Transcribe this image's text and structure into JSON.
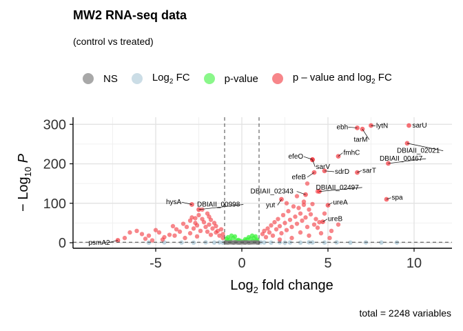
{
  "chart_data": {
    "type": "scatter",
    "title": "MW2 RNA-seq data",
    "subtitle": "(control vs treated)",
    "xlabel_main": "Log",
    "xlabel_sub": "2",
    "xlabel_rest": " fold change",
    "ylabel_prefix": "− Log",
    "ylabel_sub": "10",
    "ylabel_var": "P",
    "caption": "total = 2248 variables",
    "xlim": [
      -9.8,
      12.2
    ],
    "ylim": [
      -14,
      318
    ],
    "x_ticks": [
      -5,
      0,
      5,
      10
    ],
    "y_ticks": [
      0,
      100,
      200,
      300
    ],
    "grid": true,
    "legend_position": "top",
    "fc_cutoff": 1,
    "p_cutoff_y": 1.3,
    "colors": {
      "NS": "#7a7a7a",
      "FC": "#a9c7d6",
      "P": "#3cf23c",
      "FC_P": "#f2353c"
    },
    "legend": [
      {
        "key": "NS",
        "label": "NS",
        "sub": "",
        "rest": ""
      },
      {
        "key": "FC",
        "label": "Log",
        "sub": "2",
        "rest": " FC"
      },
      {
        "key": "P",
        "label": "p-value",
        "sub": "",
        "rest": ""
      },
      {
        "key": "FC_P",
        "label": "p – value and log",
        "sub": "2",
        "rest": " FC"
      }
    ],
    "labeled_points": [
      {
        "gene": "psmA2",
        "x": -7.2,
        "y": 6
      },
      {
        "gene": "hysA",
        "x": -2.9,
        "y": 97
      },
      {
        "gene": "DBIAII_00998",
        "x": -2.5,
        "y": 84
      },
      {
        "gene": "DBIAII_02343",
        "x": 3.7,
        "y": 122
      },
      {
        "gene": "yut",
        "x": 2.3,
        "y": 110
      },
      {
        "gene": "efeO",
        "x": 4.1,
        "y": 211
      },
      {
        "gene": "sarV",
        "x": 4.1,
        "y": 210
      },
      {
        "gene": "efeB",
        "x": 4.2,
        "y": 178
      },
      {
        "gene": "sdrD",
        "x": 4.8,
        "y": 182
      },
      {
        "gene": "fmhC",
        "x": 5.6,
        "y": 219
      },
      {
        "gene": "DBIAII_02497",
        "x": 4.5,
        "y": 130
      },
      {
        "gene": "ureA",
        "x": 5.0,
        "y": 95
      },
      {
        "gene": "ureB",
        "x": 4.7,
        "y": 53
      },
      {
        "gene": "ebh",
        "x": 6.7,
        "y": 291
      },
      {
        "gene": "tarM",
        "x": 7.0,
        "y": 288
      },
      {
        "gene": "lytN",
        "x": 7.5,
        "y": 297
      },
      {
        "gene": "sarU",
        "x": 9.7,
        "y": 297
      },
      {
        "gene": "DBIAII_02021",
        "x": 9.6,
        "y": 252
      },
      {
        "gene": "DBIAII_00467",
        "x": 8.5,
        "y": 201
      },
      {
        "gene": "sarT",
        "x": 6.7,
        "y": 178
      },
      {
        "gene": "spa",
        "x": 8.4,
        "y": 110
      }
    ],
    "label_text_positions": {
      "psmA2": [
        -8.9,
        0,
        "start"
      ],
      "hysA": [
        -4.4,
        103,
        "start"
      ],
      "DBIAII_00998": [
        -2.6,
        97,
        "start"
      ],
      "DBIAII_02343": [
        0.5,
        130,
        "start"
      ],
      "yut": [
        1.4,
        95,
        "start"
      ],
      "efeO": [
        2.7,
        218,
        "start"
      ],
      "sarV": [
        4.3,
        192,
        "start"
      ],
      "efeB": [
        2.9,
        166,
        "start"
      ],
      "sdrD": [
        5.4,
        180,
        "start"
      ],
      "fmhC": [
        5.9,
        228,
        "start"
      ],
      "DBIAII_02497": [
        4.3,
        140,
        "start"
      ],
      "ureA": [
        5.3,
        102,
        "start"
      ],
      "ureB": [
        5.0,
        60,
        "start"
      ],
      "ebh": [
        5.5,
        293,
        "start"
      ],
      "tarM": [
        6.5,
        261,
        "start"
      ],
      "lytN": [
        7.8,
        296,
        "start"
      ],
      "sarU": [
        9.9,
        297,
        "start"
      ],
      "DBIAII_02021": [
        9.0,
        233,
        "start"
      ],
      "DBIAII_00467": [
        8.0,
        213,
        "start"
      ],
      "sarT": [
        7.0,
        183,
        "start"
      ],
      "spa": [
        8.7,
        114,
        "start"
      ]
    },
    "scatter_fc_p": [
      [
        -6.5,
        26
      ],
      [
        -6.1,
        30
      ],
      [
        -5.8,
        22
      ],
      [
        -5.4,
        18
      ],
      [
        -5.0,
        32
      ],
      [
        -4.8,
        26
      ],
      [
        -4.5,
        14
      ],
      [
        -4.2,
        20
      ],
      [
        -4.0,
        42
      ],
      [
        -3.8,
        34
      ],
      [
        -3.6,
        28
      ],
      [
        -3.4,
        48
      ],
      [
        -3.2,
        40
      ],
      [
        -3.0,
        56
      ],
      [
        -3.0,
        24
      ],
      [
        -2.9,
        64
      ],
      [
        -2.8,
        36
      ],
      [
        -2.7,
        50
      ],
      [
        -2.6,
        44
      ],
      [
        -2.5,
        70
      ],
      [
        -2.4,
        30
      ],
      [
        -2.3,
        60
      ],
      [
        -2.2,
        52
      ],
      [
        -2.1,
        40
      ],
      [
        -2.0,
        74
      ],
      [
        -2.0,
        28
      ],
      [
        -1.9,
        46
      ],
      [
        -1.8,
        58
      ],
      [
        -1.8,
        20
      ],
      [
        -1.7,
        36
      ],
      [
        -1.6,
        50
      ],
      [
        -1.5,
        26
      ],
      [
        -1.5,
        42
      ],
      [
        -1.4,
        30
      ],
      [
        -1.3,
        18
      ],
      [
        -1.2,
        34
      ],
      [
        -1.1,
        22
      ],
      [
        -1.1,
        12
      ],
      [
        -4.6,
        8
      ],
      [
        -5.6,
        10
      ],
      [
        -3.3,
        12
      ],
      [
        -2.6,
        16
      ],
      [
        -3.9,
        18
      ],
      [
        -6.8,
        12
      ],
      [
        -5.2,
        6
      ],
      [
        -2.3,
        84
      ],
      [
        -1.9,
        66
      ],
      [
        -2.7,
        62
      ],
      [
        1.2,
        22
      ],
      [
        1.3,
        30
      ],
      [
        1.4,
        14
      ],
      [
        1.5,
        36
      ],
      [
        1.6,
        26
      ],
      [
        1.7,
        44
      ],
      [
        1.8,
        18
      ],
      [
        1.9,
        52
      ],
      [
        2.0,
        34
      ],
      [
        2.1,
        60
      ],
      [
        2.2,
        42
      ],
      [
        2.3,
        24
      ],
      [
        2.4,
        70
      ],
      [
        2.5,
        50
      ],
      [
        2.6,
        32
      ],
      [
        2.7,
        80
      ],
      [
        2.8,
        58
      ],
      [
        2.9,
        40
      ],
      [
        3.0,
        92
      ],
      [
        3.1,
        66
      ],
      [
        3.2,
        48
      ],
      [
        3.3,
        88
      ],
      [
        3.4,
        74
      ],
      [
        3.5,
        56
      ],
      [
        3.6,
        96
      ],
      [
        3.7,
        64
      ],
      [
        3.8,
        40
      ],
      [
        3.9,
        84
      ],
      [
        4.0,
        72
      ],
      [
        4.1,
        98
      ],
      [
        4.2,
        46
      ],
      [
        4.3,
        60
      ],
      [
        4.4,
        38
      ],
      [
        4.5,
        52
      ],
      [
        4.8,
        74
      ],
      [
        5.2,
        30
      ],
      [
        5.6,
        46
      ],
      [
        3.4,
        26
      ],
      [
        2.9,
        12
      ],
      [
        3.9,
        18
      ],
      [
        4.6,
        24
      ],
      [
        5.1,
        12
      ],
      [
        2.2,
        8
      ],
      [
        3.2,
        118
      ],
      [
        3.6,
        104
      ],
      [
        2.6,
        100
      ],
      [
        4.4,
        130
      ],
      [
        3.8,
        150
      ]
    ],
    "scatter_p": [
      [
        -0.9,
        10
      ],
      [
        -0.8,
        14
      ],
      [
        -0.7,
        8
      ],
      [
        -0.6,
        18
      ],
      [
        -0.5,
        12
      ],
      [
        -0.4,
        16
      ],
      [
        -0.3,
        6
      ],
      [
        0.3,
        8
      ],
      [
        0.4,
        14
      ],
      [
        0.5,
        10
      ],
      [
        0.6,
        18
      ],
      [
        0.7,
        12
      ],
      [
        0.8,
        16
      ],
      [
        0.9,
        8
      ],
      [
        -0.85,
        4
      ],
      [
        0.85,
        5
      ],
      [
        -0.2,
        7
      ],
      [
        0.2,
        9
      ],
      [
        0.1,
        4
      ],
      [
        -0.1,
        5
      ],
      [
        -0.65,
        3
      ],
      [
        0.65,
        4
      ]
    ],
    "scatter_ns": [
      [
        -0.9,
        0.6
      ],
      [
        -0.7,
        1.0
      ],
      [
        -0.5,
        0.4
      ],
      [
        -0.3,
        0.8
      ],
      [
        -0.1,
        0.3
      ],
      [
        0.1,
        0.6
      ],
      [
        0.3,
        1.1
      ],
      [
        0.5,
        0.5
      ],
      [
        0.7,
        0.9
      ],
      [
        0.9,
        0.3
      ],
      [
        -0.8,
        0.2
      ],
      [
        -0.4,
        1.2
      ],
      [
        0.0,
        0.9
      ],
      [
        0.4,
        0.2
      ],
      [
        0.8,
        1.2
      ],
      [
        -0.6,
        0.7
      ],
      [
        0.6,
        0.8
      ],
      [
        -0.2,
        0.1
      ],
      [
        0.2,
        0.2
      ],
      [
        -0.95,
        1.1
      ],
      [
        0.95,
        0.7
      ],
      [
        0.15,
        1.2
      ],
      [
        -0.45,
        0.5
      ]
    ],
    "scatter_fc": [
      [
        -3.5,
        0.5
      ],
      [
        -2.8,
        0.3
      ],
      [
        -2.1,
        0.9
      ],
      [
        -1.6,
        0.4
      ],
      [
        -1.3,
        0.8
      ],
      [
        1.3,
        0.6
      ],
      [
        1.7,
        0.3
      ],
      [
        2.2,
        0.9
      ],
      [
        2.8,
        0.5
      ],
      [
        3.4,
        0.2
      ],
      [
        4.1,
        0.7
      ],
      [
        4.8,
        0.4
      ],
      [
        5.5,
        0.9
      ],
      [
        6.3,
        0.3
      ],
      [
        7.2,
        0.8
      ],
      [
        8.1,
        0.5
      ],
      [
        9.0,
        0.6
      ],
      [
        -4.5,
        0.8
      ],
      [
        -5.4,
        0.3
      ],
      [
        1.1,
        1.0
      ],
      [
        -1.1,
        0.3
      ],
      [
        2.5,
        0.2
      ],
      [
        3.9,
        1.0
      ]
    ]
  }
}
